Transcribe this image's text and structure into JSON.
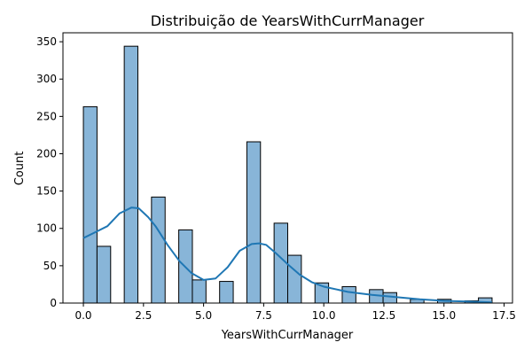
{
  "chart_data": {
    "type": "bar",
    "title": "Distribuição de YearsWithCurrManager",
    "xlabel": "YearsWithCurrManager",
    "ylabel": "Count",
    "xlim": [
      -0.85,
      17.85
    ],
    "ylim": [
      0,
      362
    ],
    "xticks": [
      0.0,
      2.5,
      5.0,
      7.5,
      10.0,
      12.5,
      15.0,
      17.5
    ],
    "xtick_labels": [
      "0.0",
      "2.5",
      "5.0",
      "7.5",
      "10.0",
      "12.5",
      "15.0",
      "17.5"
    ],
    "yticks": [
      0,
      50,
      100,
      150,
      200,
      250,
      300,
      350
    ],
    "ytick_labels": [
      "0",
      "50",
      "100",
      "150",
      "200",
      "250",
      "300",
      "350"
    ],
    "grid": false,
    "bin_width": 0.567,
    "bins": [
      {
        "x_start": 0.0,
        "count": 263
      },
      {
        "x_start": 0.567,
        "count": 76
      },
      {
        "x_start": 1.7,
        "count": 344
      },
      {
        "x_start": 2.833,
        "count": 142
      },
      {
        "x_start": 3.967,
        "count": 98
      },
      {
        "x_start": 4.533,
        "count": 31
      },
      {
        "x_start": 5.667,
        "count": 29
      },
      {
        "x_start": 6.8,
        "count": 216
      },
      {
        "x_start": 7.933,
        "count": 107
      },
      {
        "x_start": 8.5,
        "count": 64
      },
      {
        "x_start": 9.633,
        "count": 27
      },
      {
        "x_start": 10.767,
        "count": 22
      },
      {
        "x_start": 11.9,
        "count": 18
      },
      {
        "x_start": 12.467,
        "count": 14
      },
      {
        "x_start": 13.6,
        "count": 5
      },
      {
        "x_start": 14.733,
        "count": 5
      },
      {
        "x_start": 15.867,
        "count": 3
      },
      {
        "x_start": 16.433,
        "count": 7
      }
    ],
    "kde": {
      "x": [
        0,
        0.5,
        1,
        1.5,
        2,
        2.3,
        2.7,
        3,
        3.5,
        4,
        4.5,
        5,
        5.5,
        6,
        6.5,
        7,
        7.3,
        7.6,
        8,
        8.5,
        9,
        9.5,
        10,
        11,
        12,
        13,
        14,
        15,
        16,
        17
      ],
      "y": [
        87,
        95,
        103,
        120,
        128,
        127,
        115,
        103,
        78,
        56,
        40,
        31,
        33,
        48,
        70,
        79,
        80,
        78,
        67,
        52,
        38,
        28,
        22,
        15,
        11,
        8,
        5,
        3,
        2,
        1
      ]
    },
    "colors": {
      "bar_fill": "#88b5d8",
      "bar_edge": "#000000",
      "kde_line": "#1f77b4"
    }
  }
}
